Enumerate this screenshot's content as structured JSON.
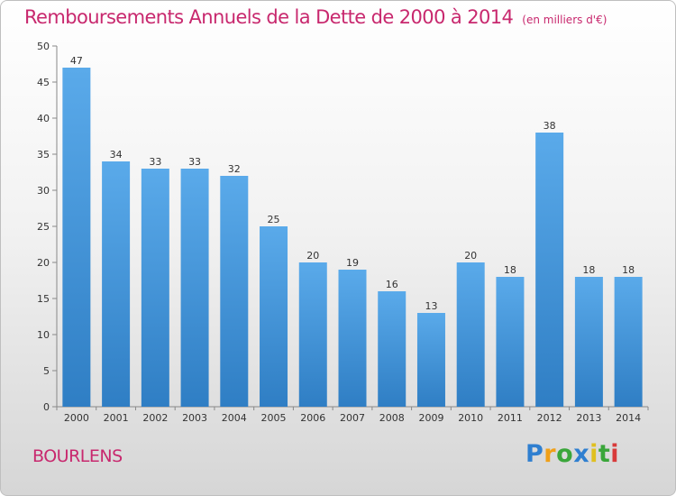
{
  "title": "Remboursements Annuels de la Dette de 2000 à 2014",
  "subtitle": "(en milliers d'€)",
  "commune": "BOURLENS",
  "logo": {
    "p": "P",
    "r": "r",
    "o": "o",
    "x": "x",
    "i1": "i",
    "t": "t",
    "i2": "i"
  },
  "colors": {
    "accent": "#c8286e",
    "bar_top": "#5aaaea",
    "bar_bottom": "#2f7ec4",
    "axis": "#888888"
  },
  "chart_data": {
    "type": "bar",
    "categories": [
      "2000",
      "2001",
      "2002",
      "2003",
      "2004",
      "2005",
      "2006",
      "2007",
      "2008",
      "2009",
      "2010",
      "2011",
      "2012",
      "2013",
      "2014"
    ],
    "values": [
      47,
      34,
      33,
      33,
      32,
      25,
      20,
      19,
      16,
      13,
      20,
      18,
      38,
      18,
      18
    ],
    "ylim": [
      0,
      50
    ],
    "yticks": [
      0,
      5,
      10,
      15,
      20,
      25,
      30,
      35,
      40,
      45,
      50
    ],
    "grid": false,
    "xlabel": "",
    "ylabel": ""
  }
}
